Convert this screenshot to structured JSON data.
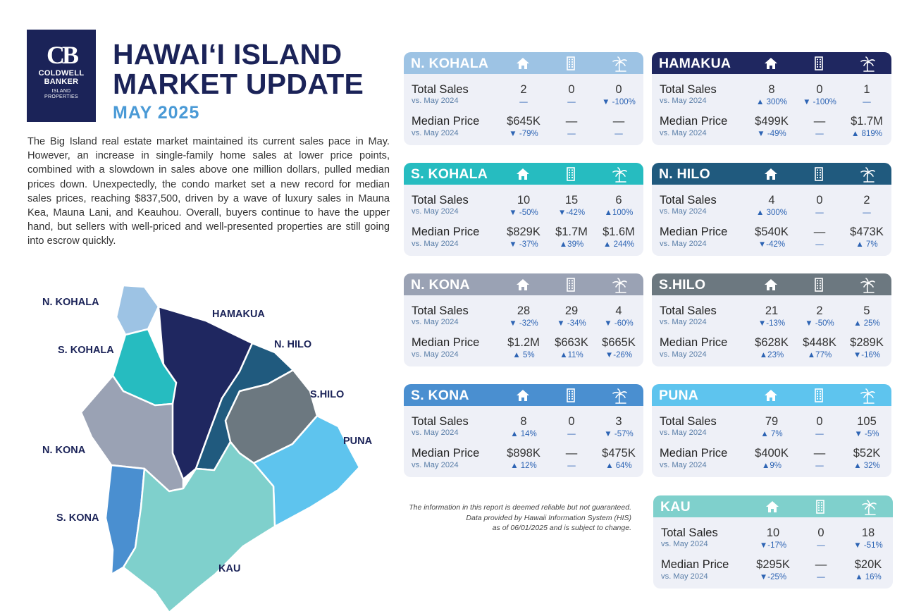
{
  "brand": {
    "mark": "CB",
    "line1": "COLDWELL",
    "line2": "BANKER",
    "line3": "ISLAND",
    "line4": "PROPERTIES",
    "color": "#1b2358"
  },
  "header": {
    "title_line1": "HAWAI‘I ISLAND",
    "title_line2": "MARKET UPDATE",
    "subtitle": "MAY 2025"
  },
  "intro": "The Big Island real estate market maintained its current sales pace in May. However, an increase in single-family home sales at lower price points, combined with a slowdown in sales above one million dollars, pulled median prices down. Unexpectedly, the condo market set a new record for median sales prices, reaching $837,500, driven by a wave of luxury sales in Mauna Kea, Mauna Lani, and Keauhou. Overall, buyers continue to have the upper hand, but sellers with well-priced and well-presented properties are still going into escrow quickly.",
  "map_labels": {
    "n_kohala": "N. KOHALA",
    "hamakua": "HAMAKUA",
    "s_kohala": "S. KOHALA",
    "n_hilo": "N. HILO",
    "s_hilo": "S.HILO",
    "puna": "PUNA",
    "n_kona": "N. KONA",
    "s_kona": "S. KONA",
    "kau": "KAU"
  },
  "region_colors": {
    "n_kohala": "#9dc3e4",
    "s_kohala": "#26bcc0",
    "n_kona": "#9aa2b4",
    "s_kona": "#4a8fd0",
    "hamakua": "#1f2760",
    "n_hilo": "#205a7e",
    "s_hilo": "#6c7880",
    "puna": "#5ec4ee",
    "kau": "#7fd0cc"
  },
  "disclaimer": {
    "line1": "The information in this report is deemed reliable but not guaranteed.",
    "line2": "Data provided by Hawaii Information System (HIS)",
    "line3": "as of 06/01/2025 and is subject to change."
  },
  "icons": [
    "house-icon",
    "condo-building-icon",
    "palm-tree-land-icon"
  ],
  "cards": [
    {
      "name": "N. KOHALA",
      "color": "#9dc3e4",
      "sales_label": "Total Sales",
      "sales_sub": "vs. May 2024",
      "sales": [
        "2",
        "0",
        "0"
      ],
      "sales_chg": [
        "—",
        "—",
        "▼ -100%"
      ],
      "price_label": "Median Price",
      "price_sub": "vs. May 2024",
      "price": [
        "$645K",
        "—",
        "—"
      ],
      "price_chg": [
        "▼ -79%",
        "—",
        "—"
      ]
    },
    {
      "name": "HAMAKUA",
      "color": "#1f2760",
      "sales_label": "Total Sales",
      "sales_sub": "vs. May 2024",
      "sales": [
        "8",
        "0",
        "1"
      ],
      "sales_chg": [
        "▲ 300%",
        "▼ -100%",
        "—"
      ],
      "price_label": "Median Price",
      "price_sub": "vs. May 2024",
      "price": [
        "$499K",
        "—",
        "$1.7M"
      ],
      "price_chg": [
        "▼ -49%",
        "—",
        "▲ 819%"
      ]
    },
    {
      "name": "S. KOHALA",
      "color": "#26bcc0",
      "sales_label": "Total Sales",
      "sales_sub": "vs. May 2024",
      "sales": [
        "10",
        "15",
        "6"
      ],
      "sales_chg": [
        "▼ -50%",
        "▼-42%",
        "▲100%"
      ],
      "price_label": "Median Price",
      "price_sub": "vs. May 2024",
      "price": [
        "$829K",
        "$1.7M",
        "$1.6M"
      ],
      "price_chg": [
        "▼ -37%",
        "▲39%",
        "▲ 244%"
      ]
    },
    {
      "name": "N. HILO",
      "color": "#205a7e",
      "sales_label": "Total Sales",
      "sales_sub": "vs. May 2024",
      "sales": [
        "4",
        "0",
        "2"
      ],
      "sales_chg": [
        "▲ 300%",
        "—",
        "—"
      ],
      "price_label": "Median Price",
      "price_sub": "vs. May 2024",
      "price": [
        "$540K",
        "—",
        "$473K"
      ],
      "price_chg": [
        "▼-42%",
        "—",
        "▲ 7%"
      ]
    },
    {
      "name": "N. KONA",
      "color": "#9aa2b4",
      "sales_label": "Total Sales",
      "sales_sub": "vs. May 2024",
      "sales": [
        "28",
        "29",
        "4"
      ],
      "sales_chg": [
        "▼ -32%",
        "▼ -34%",
        "▼ -60%"
      ],
      "price_label": "Median Price",
      "price_sub": "vs. May 2024",
      "price": [
        "$1.2M",
        "$663K",
        "$665K"
      ],
      "price_chg": [
        "▲ 5%",
        "▲11%",
        "▼-26%"
      ]
    },
    {
      "name": "S.HILO",
      "color": "#6c7880",
      "sales_label": "Total Sales",
      "sales_sub": "vs. May 2024",
      "sales": [
        "21",
        "2",
        "5"
      ],
      "sales_chg": [
        "▼-13%",
        "▼ -50%",
        "▲ 25%"
      ],
      "price_label": "Median Price",
      "price_sub": "vs. May 2024",
      "price": [
        "$628K",
        "$448K",
        "$289K"
      ],
      "price_chg": [
        "▲23%",
        "▲77%",
        "▼-16%"
      ]
    },
    {
      "name": "S. KONA",
      "color": "#4a8fd0",
      "sales_label": "Total Sales",
      "sales_sub": "vs. May 2024",
      "sales": [
        "8",
        "0",
        "3"
      ],
      "sales_chg": [
        "▲ 14%",
        "—",
        "▼ -57%"
      ],
      "price_label": "Median Price",
      "price_sub": "vs. May 2024",
      "price": [
        "$898K",
        "—",
        "$475K"
      ],
      "price_chg": [
        "▲ 12%",
        "—",
        "▲ 64%"
      ]
    },
    {
      "name": "PUNA",
      "color": "#5ec4ee",
      "sales_label": "Total Sales",
      "sales_sub": "vs. May 2024",
      "sales": [
        "79",
        "0",
        "105"
      ],
      "sales_chg": [
        "▲ 7%",
        "—",
        "▼ -5%"
      ],
      "price_label": "Median Price",
      "price_sub": "vs. May 2024",
      "price": [
        "$400K",
        "—",
        "$52K"
      ],
      "price_chg": [
        "▲9%",
        "—",
        "▲ 32%"
      ]
    },
    {
      "name": "KAU",
      "color": "#7fd0cc",
      "sales_label": "Total Sales",
      "sales_sub": "vs. May 2024",
      "sales": [
        "10",
        "0",
        "18"
      ],
      "sales_chg": [
        "▼-17%",
        "—",
        "▼ -51%"
      ],
      "price_label": "Median Price",
      "price_sub": "vs. May 2024",
      "price": [
        "$295K",
        "—",
        "$20K"
      ],
      "price_chg": [
        "▼-25%",
        "—",
        "▲ 16%"
      ]
    }
  ]
}
